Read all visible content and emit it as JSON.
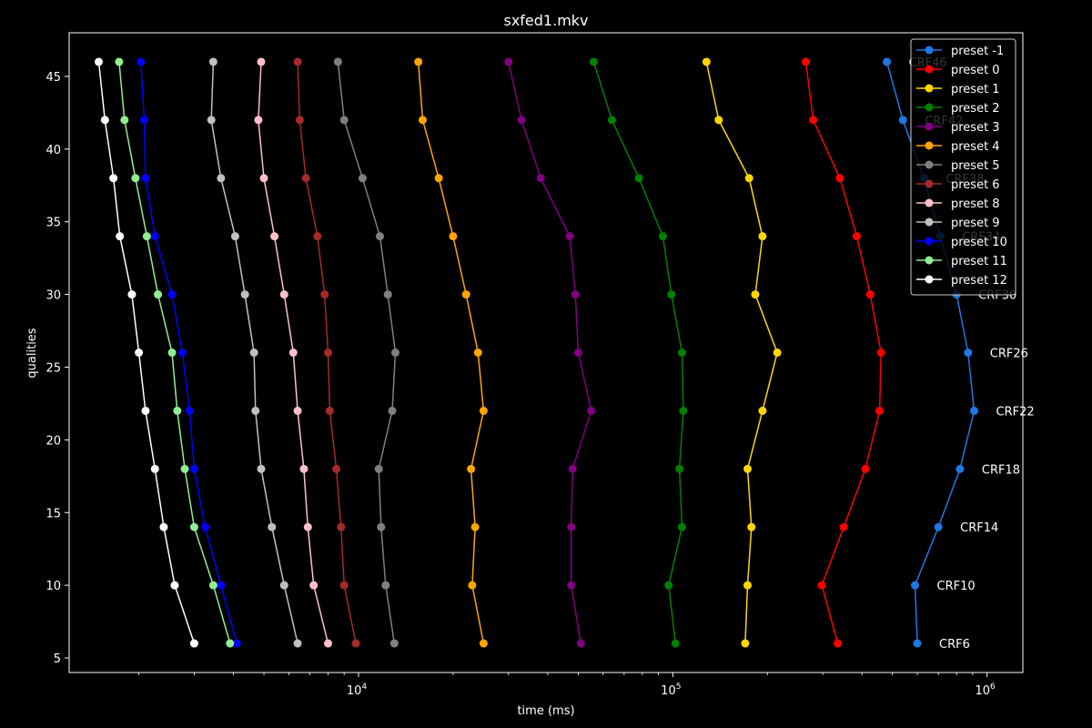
{
  "chart_data": {
    "type": "line",
    "title": "sxfed1.mkv",
    "xlabel": "time (ms)",
    "ylabel": "qualities",
    "xscale": "log",
    "xlim": [
      1200,
      1300000
    ],
    "ylim": [
      4,
      48
    ],
    "x_ticks": [
      {
        "value": 10000,
        "base": "10",
        "exp": "4"
      },
      {
        "value": 100000,
        "base": "10",
        "exp": "5"
      },
      {
        "value": 1000000,
        "base": "10",
        "exp": "6"
      }
    ],
    "y_ticks": [
      5,
      10,
      15,
      20,
      25,
      30,
      35,
      40,
      45
    ],
    "grid": false,
    "legend_position": "top-right",
    "qualities": [
      6,
      10,
      14,
      18,
      22,
      26,
      30,
      34,
      38,
      42,
      46
    ],
    "point_labels": [
      "CRF6",
      "CRF10",
      "CRF14",
      "CRF18",
      "CRF22",
      "CRF26",
      "CRF30",
      "CRF34",
      "CRF38",
      "CRF42",
      "CRF46"
    ],
    "series": [
      {
        "name": "preset -1",
        "color": "#1f77e4",
        "x": [
          600000,
          590000,
          700000,
          820000,
          910000,
          870000,
          800000,
          710000,
          630000,
          540000,
          480000
        ]
      },
      {
        "name": "preset 0",
        "color": "#ff0000",
        "x": [
          335000,
          298000,
          350000,
          410000,
          455000,
          460000,
          425000,
          385000,
          340000,
          280000,
          265000
        ]
      },
      {
        "name": "preset 1",
        "color": "#ffd700",
        "x": [
          170000,
          173000,
          178000,
          173000,
          193000,
          215000,
          183000,
          193000,
          175000,
          140000,
          128000
        ]
      },
      {
        "name": "preset 2",
        "color": "#008000",
        "x": [
          102000,
          97000,
          107000,
          105000,
          108000,
          107000,
          99000,
          93000,
          78000,
          64000,
          56000
        ]
      },
      {
        "name": "preset 3",
        "color": "#800080",
        "x": [
          51000,
          47500,
          47500,
          48000,
          55000,
          50000,
          49000,
          47000,
          38000,
          33000,
          30000
        ]
      },
      {
        "name": "preset 4",
        "color": "#ffa500",
        "x": [
          25000,
          23000,
          23500,
          22800,
          25000,
          24000,
          22000,
          20000,
          18000,
          16000,
          15500
        ]
      },
      {
        "name": "preset 5",
        "color": "#808080",
        "x": [
          13000,
          12200,
          11800,
          11600,
          12800,
          13100,
          12400,
          11700,
          10300,
          9000,
          8600
        ]
      },
      {
        "name": "preset 6",
        "color": "#a52a2a",
        "x": [
          9800,
          9000,
          8800,
          8500,
          8100,
          8000,
          7800,
          7400,
          6800,
          6500,
          6400
        ]
      },
      {
        "name": "preset 8",
        "color": "#ffc0cb",
        "x": [
          8000,
          7200,
          6900,
          6700,
          6400,
          6200,
          5800,
          5400,
          5000,
          4800,
          4900
        ]
      },
      {
        "name": "preset 9",
        "color": "#c0c0c0",
        "x": [
          6400,
          5800,
          5300,
          4900,
          4700,
          4650,
          4350,
          4050,
          3650,
          3400,
          3450
        ]
      },
      {
        "name": "preset 10",
        "color": "#0000ff",
        "x": [
          4100,
          3650,
          3250,
          3000,
          2900,
          2750,
          2550,
          2250,
          2100,
          2080,
          2030
        ]
      },
      {
        "name": "preset 11",
        "color": "#90ee90",
        "x": [
          3900,
          3450,
          3000,
          2800,
          2650,
          2550,
          2300,
          2120,
          1950,
          1800,
          1730
        ]
      },
      {
        "name": "preset 12",
        "color": "#ffffff",
        "x": [
          3000,
          2600,
          2400,
          2250,
          2100,
          2000,
          1900,
          1740,
          1660,
          1560,
          1490
        ]
      }
    ]
  }
}
